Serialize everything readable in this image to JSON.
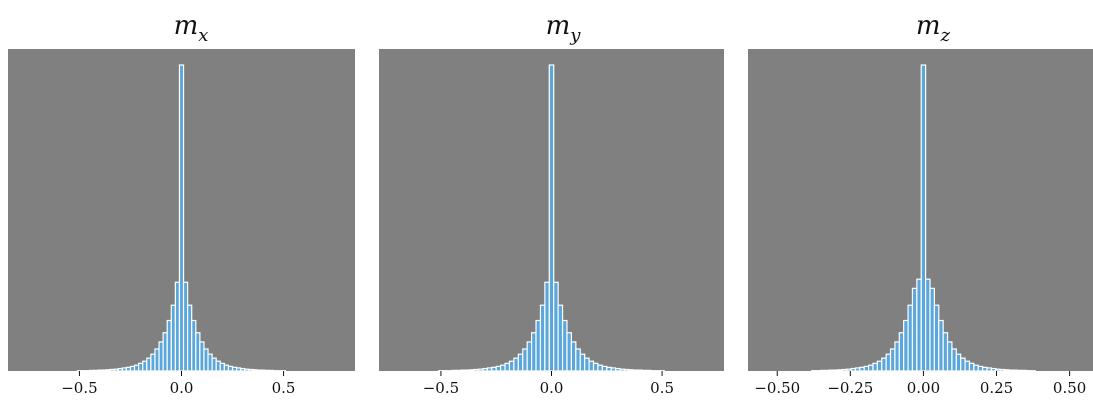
{
  "chart_data": [
    {
      "type": "histogram",
      "title_base": "m",
      "title_sub": "x",
      "xlim": [
        -0.85,
        0.85
      ],
      "xticks": [
        -0.5,
        0.0,
        0.5
      ],
      "xtick_labels": [
        "−0.5",
        "0.0",
        "0.5"
      ],
      "grid": false,
      "background": "#808080",
      "bar_color": "#5aa7dc",
      "bins": {
        "start": -0.4,
        "width": 0.02,
        "counts": [
          0.001,
          0.001,
          0.001,
          0.002,
          0.002,
          0.003,
          0.003,
          0.004,
          0.005,
          0.006,
          0.008,
          0.01,
          0.012,
          0.015,
          0.019,
          0.025,
          0.032,
          0.042,
          0.055,
          0.072,
          0.095,
          0.125,
          0.165,
          0.215,
          0.29,
          0.29,
          0.215,
          0.165,
          0.125,
          0.095,
          0.072,
          0.055,
          0.042,
          0.032,
          0.025,
          0.019,
          0.015,
          0.012,
          0.01,
          0.008,
          0.006,
          0.005,
          0.004,
          0.003,
          0.003,
          0.002,
          0.002,
          0.001,
          0.001,
          0.001
        ],
        "peak_index": 20,
        "peak_value": 1.0
      }
    },
    {
      "type": "histogram",
      "title_base": "m",
      "title_sub": "y",
      "xlim": [
        -0.78,
        0.78
      ],
      "xticks": [
        -0.5,
        0.0,
        0.5
      ],
      "xtick_labels": [
        "−0.5",
        "0.0",
        "0.5"
      ],
      "grid": false,
      "background": "#808080",
      "bar_color": "#5aa7dc",
      "bins": {
        "start": -0.4,
        "width": 0.02,
        "counts": [
          0.001,
          0.001,
          0.001,
          0.002,
          0.002,
          0.003,
          0.003,
          0.004,
          0.005,
          0.006,
          0.008,
          0.01,
          0.012,
          0.015,
          0.019,
          0.025,
          0.032,
          0.042,
          0.055,
          0.072,
          0.095,
          0.125,
          0.165,
          0.215,
          0.29,
          0.29,
          0.215,
          0.165,
          0.125,
          0.095,
          0.072,
          0.055,
          0.042,
          0.032,
          0.025,
          0.019,
          0.015,
          0.012,
          0.01,
          0.008,
          0.006,
          0.005,
          0.004,
          0.003,
          0.003,
          0.002,
          0.002,
          0.001,
          0.001,
          0.001
        ],
        "peak_index": 20,
        "peak_value": 1.0
      }
    },
    {
      "type": "histogram",
      "title_base": "m",
      "title_sub": "z",
      "xlim": [
        -0.6,
        0.58
      ],
      "xticks": [
        -0.5,
        -0.25,
        0.0,
        0.25,
        0.5
      ],
      "xtick_labels": [
        "−0.50",
        "−0.25",
        "0.00",
        "0.25",
        "0.50"
      ],
      "grid": false,
      "background": "#808080",
      "bar_color": "#5aa7dc",
      "bins": {
        "start": -0.3,
        "width": 0.015,
        "counts": [
          0.001,
          0.001,
          0.002,
          0.002,
          0.003,
          0.003,
          0.004,
          0.005,
          0.006,
          0.008,
          0.01,
          0.012,
          0.015,
          0.019,
          0.025,
          0.032,
          0.042,
          0.055,
          0.072,
          0.095,
          0.125,
          0.165,
          0.215,
          0.27,
          0.3,
          0.3,
          0.27,
          0.215,
          0.165,
          0.125,
          0.095,
          0.072,
          0.055,
          0.042,
          0.032,
          0.025,
          0.019,
          0.015,
          0.012,
          0.01,
          0.008,
          0.006,
          0.005,
          0.004,
          0.003,
          0.003,
          0.002,
          0.002,
          0.001,
          0.001
        ],
        "peak_index": 20,
        "peak_value": 1.0
      }
    }
  ]
}
